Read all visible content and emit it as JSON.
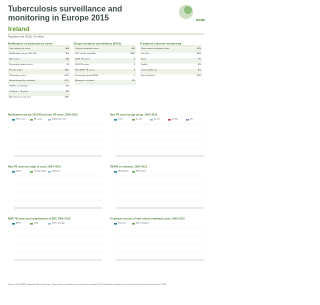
{
  "header": {
    "title_line1": "Tuberculosis surveillance and",
    "title_line2": "monitoring in Europe 2015",
    "country": "Ireland",
    "subtitle": "Population size (2013): 4.6 million",
    "logo": "ecdc"
  },
  "sections": [
    {
      "title": "Notification of tuberculosis cases",
      "rows": [
        [
          "Total number of cases",
          "368"
        ],
        [
          "Notification rate per 100 000",
          "8.0"
        ],
        [
          "New cases",
          "336"
        ],
        [
          "Previously treated cases",
          "25"
        ],
        [
          "Foreign origin",
          "45%"
        ],
        [
          "Pulmonary cases",
          "61%"
        ],
        [
          "Bacteriologically confirmed",
          "67%"
        ],
        [
          "TB/HIV co-infection",
          "4%"
        ],
        [
          "Children < 15 years",
          "4%"
        ],
        [
          "Age 65 years and over",
          "18%"
        ]
      ]
    },
    {
      "title": "Drug resistance surveillance (2013)",
      "rows": [
        [
          "Culture-confirmed cases",
          "240"
        ],
        [
          "DST results available",
          "98%"
        ],
        [
          "MDR TB cases",
          "4"
        ],
        [
          "XDR TB cases",
          "0"
        ],
        [
          "New MDR TB cases",
          "3"
        ],
        [
          "Previously treated MDR",
          "1"
        ],
        [
          "Rifampicin resistant",
          "2%"
        ]
      ]
    },
    {
      "title": "Treatment outcome monitoring",
      "rows": [
        [
          "New culture-confirmed cases",
          "42%"
        ],
        [
          "Success",
          "46%"
        ],
        [
          "Died",
          "7%"
        ],
        [
          "Failed",
          "0%"
        ],
        [
          "Lost to follow-up",
          "5%"
        ],
        [
          "Not evaluated",
          "42%"
        ]
      ]
    }
  ],
  "charts": [
    {
      "title": "Notification rate per 100 000 and new TB cases, 2004–2013",
      "legend": [
        "New cases",
        "All cases",
        "Notification rate"
      ]
    },
    {
      "title": "New TB cases by age group, 2004–2013",
      "legend": [
        "0–14",
        "15–24",
        "25–44",
        "45–64",
        "65+"
      ]
    },
    {
      "title": "New TB cases by origin of cases, 2004–2013",
      "legend": [
        "Native",
        "Foreign origin",
        "Unknown"
      ]
    },
    {
      "title": "TB/HIV co-infection, 2004–2013",
      "legend": [
        "HIV positive",
        "HIV tested"
      ]
    },
    {
      "title": "MDR TB cases and completeness of DST, 2004–2013",
      "legend": [
        "MDR",
        "XDR",
        "DST coverage"
      ]
    },
    {
      "title": "Treatment success of new culture-confirmed cases, 2003–2012",
      "legend": [
        "Success",
        "Not evaluated"
      ]
    }
  ],
  "footer": {
    "note": "Source: ECDC/WHO Regional Office for Europe. Tuberculosis surveillance and monitoring in Europe 2015. Stockholm: European Centre for Disease Prevention and Control, 2015."
  }
}
